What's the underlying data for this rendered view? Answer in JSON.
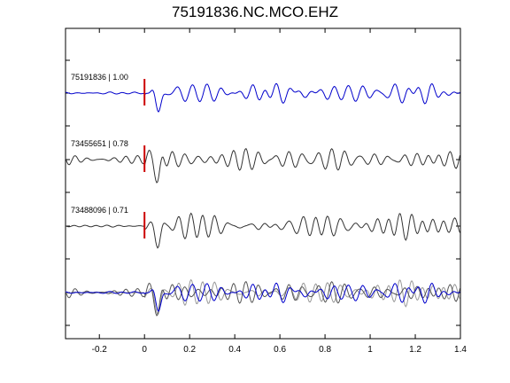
{
  "title": "75191836.NC.MCO.EHZ",
  "chart_data": {
    "type": "line",
    "title": "75191836.NC.MCO.EHZ",
    "xlabel": "",
    "ylabel": "",
    "xlim": [
      -0.35,
      1.4
    ],
    "xticks": [
      -0.2,
      0,
      0.2,
      0.4,
      0.6,
      0.8,
      1,
      1.2,
      1.4
    ],
    "xtick_labels": [
      "-0.2",
      "0",
      "0.2",
      "0.4",
      "0.6",
      "0.8",
      "1",
      "1.2",
      "1.4"
    ],
    "grid": false,
    "pick_time": 0,
    "pick_color": "#cc0000",
    "traces": [
      {
        "label": "75191836 | 1.00",
        "event_id": "75191836",
        "correlation": 1.0,
        "color": "#0000cc",
        "seed": 11
      },
      {
        "label": "73455651 | 0.78",
        "event_id": "73455651",
        "correlation": 0.78,
        "color": "#333333",
        "seed": 23
      },
      {
        "label": "73488096 | 0.71",
        "event_id": "73488096",
        "correlation": 0.71,
        "color": "#333333",
        "seed": 37
      }
    ],
    "overlay": {
      "label": "",
      "colors": [
        "#0000cc",
        "#555555",
        "#999999"
      ]
    }
  }
}
